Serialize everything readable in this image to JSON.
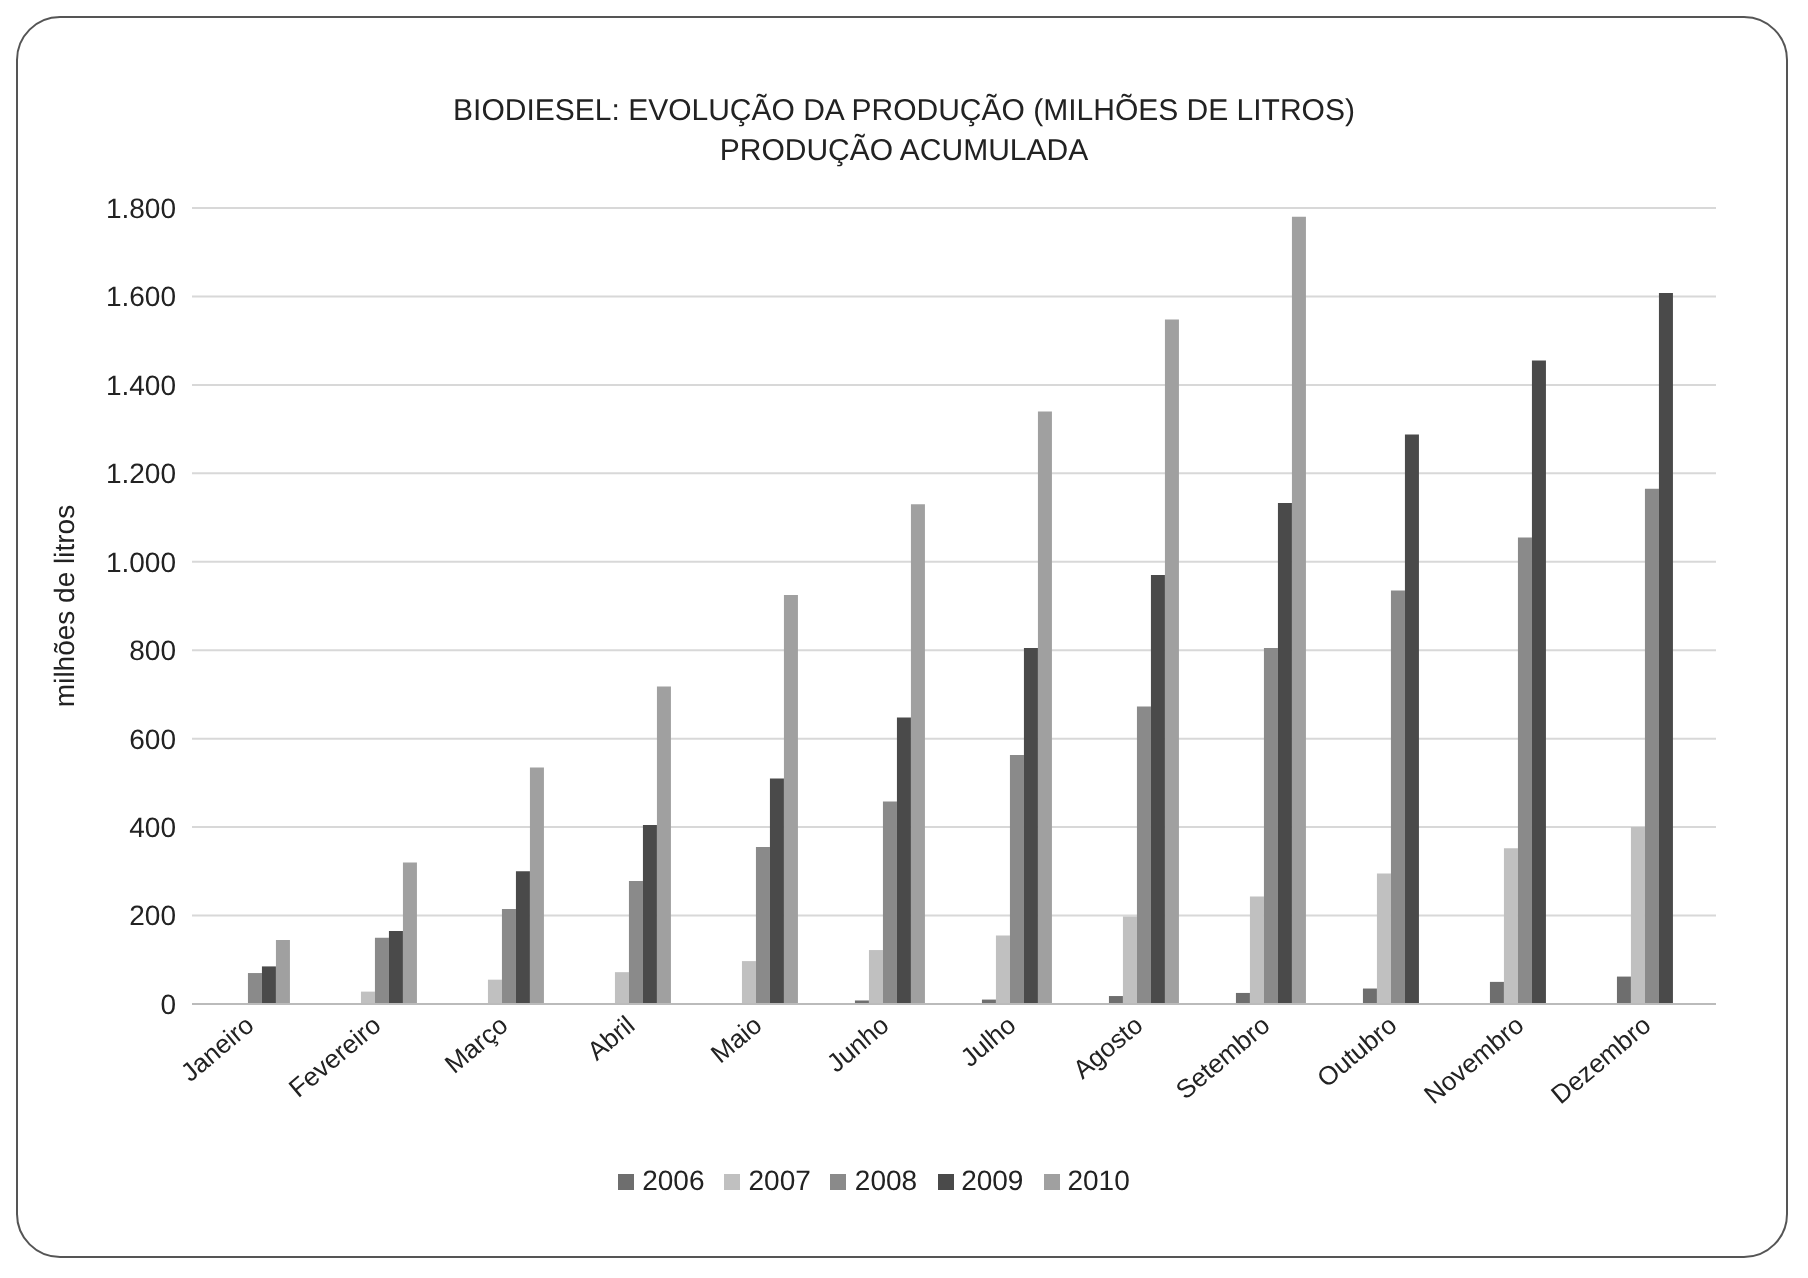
{
  "chart_data": {
    "type": "bar",
    "title": "BIODIESEL: EVOLUÇÃO DA PRODUÇÃO (MILHÕES DE LITROS)",
    "subtitle": "PRODUÇÃO ACUMULADA",
    "ylabel": "milhões de litros",
    "categories": [
      "Janeiro",
      "Fevereiro",
      "Março",
      "Abril",
      "Maio",
      "Junho",
      "Julho",
      "Agosto",
      "Setembro",
      "Outubro",
      "Novembro",
      "Dezembro"
    ],
    "series": [
      {
        "name": "2006",
        "color": "#6e6e6e",
        "values": [
          null,
          0,
          null,
          null,
          null,
          8,
          10,
          18,
          25,
          35,
          50,
          62
        ]
      },
      {
        "name": "2007",
        "color": "#c0c0c0",
        "values": [
          null,
          28,
          55,
          72,
          97,
          122,
          155,
          198,
          243,
          295,
          352,
          400
        ]
      },
      {
        "name": "2008",
        "color": "#8a8a8a",
        "values": [
          70,
          150,
          215,
          278,
          355,
          458,
          563,
          673,
          805,
          935,
          1055,
          1165
        ]
      },
      {
        "name": "2009",
        "color": "#4a4a4a",
        "values": [
          85,
          165,
          300,
          405,
          510,
          648,
          805,
          970,
          1133,
          1288,
          1455,
          1608
        ]
      },
      {
        "name": "2010",
        "color": "#a0a0a0",
        "values": [
          145,
          320,
          535,
          718,
          925,
          1130,
          1340,
          1548,
          1780,
          null,
          null,
          null
        ]
      }
    ],
    "ylim": [
      0,
      1800
    ],
    "yticks": [
      {
        "value": 0,
        "label": "0"
      },
      {
        "value": 200,
        "label": "200"
      },
      {
        "value": 400,
        "label": "400"
      },
      {
        "value": 600,
        "label": "600"
      },
      {
        "value": 800,
        "label": "800"
      },
      {
        "value": 1000,
        "label": "1.000"
      },
      {
        "value": 1200,
        "label": "1.200"
      },
      {
        "value": 1400,
        "label": "1.400"
      },
      {
        "value": 1600,
        "label": "1.600"
      },
      {
        "value": 1800,
        "label": "1.800"
      }
    ],
    "grid": "y",
    "legend": "bottom"
  }
}
